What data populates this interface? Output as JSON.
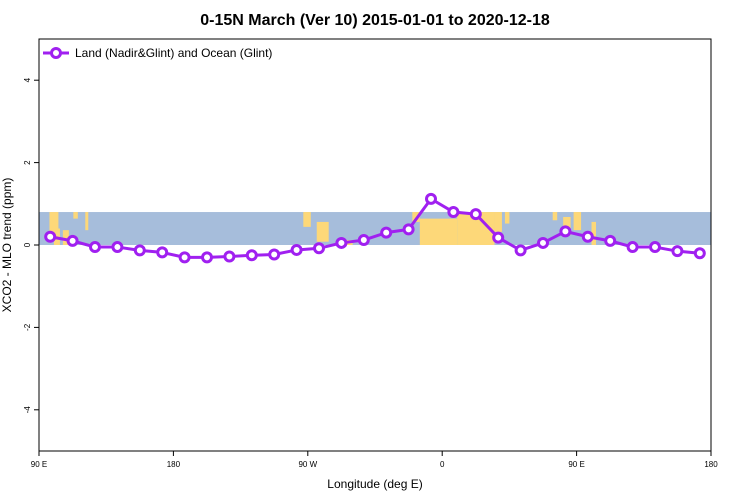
{
  "chart_data": {
    "type": "line",
    "title": "0-15N March (Ver 10)   2015-01-01 to 2020-12-18",
    "xlabel": "Longitude (deg E)",
    "ylabel": "XCO2 - MLO trend (ppm)",
    "xlim": [
      90,
      540
    ],
    "ylim": [
      -5,
      5
    ],
    "x_ticks": [
      {
        "value": 90,
        "label": "90 E"
      },
      {
        "value": 180,
        "label": "180"
      },
      {
        "value": 270,
        "label": "90 W"
      },
      {
        "value": 360,
        "label": "0"
      },
      {
        "value": 450,
        "label": "90 E"
      },
      {
        "value": 540,
        "label": "180"
      }
    ],
    "y_ticks": [
      -4,
      -2,
      0,
      2,
      4
    ],
    "legend_position": "top-left",
    "background_map": {
      "latitude_band": "0-15N",
      "y_range": [
        0,
        0.8
      ],
      "ocean_color": "#a6bddb",
      "land_color": "#fdd879"
    },
    "series": [
      {
        "name": "Land (Nadir&Glint) and Ocean (Glint)",
        "color": "#a020f0",
        "x": [
          97.5,
          112.5,
          127.5,
          142.5,
          157.5,
          172.5,
          187.5,
          202.5,
          217.5,
          232.5,
          247.5,
          262.5,
          277.5,
          292.5,
          307.5,
          322.5,
          337.5,
          352.5,
          367.5,
          382.5,
          397.5,
          412.5,
          427.5,
          442.5,
          457.5,
          472.5,
          487.5,
          502.5,
          517.5,
          532.5
        ],
        "values": [
          0.2,
          0.1,
          -0.05,
          -0.05,
          -0.13,
          -0.18,
          -0.3,
          -0.3,
          -0.28,
          -0.25,
          -0.23,
          -0.12,
          -0.08,
          0.05,
          0.12,
          0.3,
          0.38,
          1.12,
          0.8,
          0.75,
          0.18,
          -0.13,
          0.05,
          0.33,
          0.2,
          0.1,
          -0.05,
          -0.05,
          -0.15,
          -0.2
        ]
      }
    ]
  }
}
